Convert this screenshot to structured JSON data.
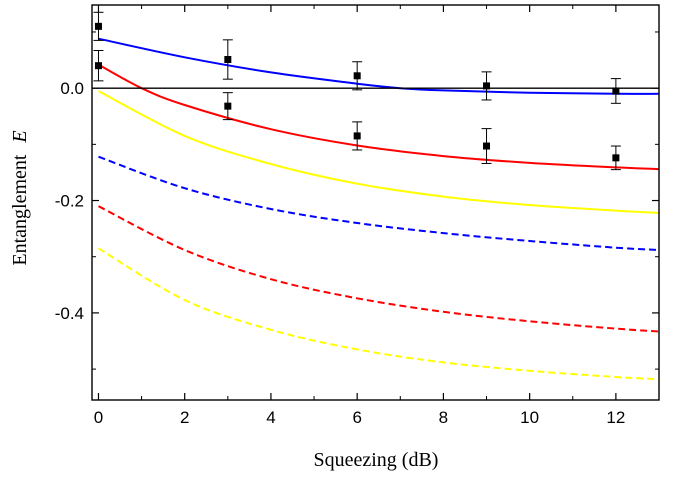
{
  "chart_data": {
    "type": "line",
    "xlabel": "Squeezing  (dB)",
    "ylabel_main": "Entanglement",
    "ylabel_symbol": "E",
    "xlim": [
      -0.15,
      13
    ],
    "ylim": [
      -0.555,
      0.148
    ],
    "xticks": [
      0,
      2,
      4,
      6,
      8,
      10,
      12
    ],
    "yticks": [
      -0.4,
      -0.2,
      0.0
    ],
    "ytick_labels": [
      "-0.4",
      "-0.2",
      "0.0"
    ],
    "grid": false,
    "legend": "none",
    "zero_line": 0.0,
    "series": [
      {
        "color": "#0000ff",
        "dash": "solid",
        "x": [
          0,
          2,
          4,
          6,
          7,
          8,
          10,
          12,
          13
        ],
        "y": [
          0.088,
          0.055,
          0.028,
          0.008,
          0.0,
          -0.004,
          -0.008,
          -0.01,
          -0.01
        ]
      },
      {
        "color": "#ff0000",
        "dash": "solid",
        "x": [
          0,
          1,
          2,
          4,
          6,
          8,
          10,
          12,
          13
        ],
        "y": [
          0.042,
          0.0,
          -0.03,
          -0.073,
          -0.102,
          -0.121,
          -0.133,
          -0.141,
          -0.144
        ]
      },
      {
        "color": "#ffff00",
        "dash": "solid",
        "x": [
          0,
          2,
          4,
          6,
          8,
          10,
          12,
          13
        ],
        "y": [
          -0.005,
          -0.085,
          -0.135,
          -0.17,
          -0.193,
          -0.208,
          -0.218,
          -0.222
        ]
      },
      {
        "color": "#0000ff",
        "dash": "dashed",
        "x": [
          0,
          2,
          4,
          6,
          8,
          10,
          12,
          13
        ],
        "y": [
          -0.122,
          -0.178,
          -0.215,
          -0.24,
          -0.258,
          -0.272,
          -0.284,
          -0.288
        ]
      },
      {
        "color": "#ff0000",
        "dash": "dashed",
        "x": [
          0,
          2,
          4,
          6,
          8,
          10,
          12,
          13
        ],
        "y": [
          -0.21,
          -0.288,
          -0.34,
          -0.374,
          -0.398,
          -0.415,
          -0.428,
          -0.433
        ]
      },
      {
        "color": "#ffff00",
        "dash": "dashed",
        "x": [
          0,
          2,
          4,
          6,
          8,
          10,
          12,
          13
        ],
        "y": [
          -0.285,
          -0.377,
          -0.43,
          -0.465,
          -0.488,
          -0.503,
          -0.514,
          -0.518
        ]
      }
    ],
    "points": [
      {
        "x": 0,
        "y": 0.11,
        "err": 0.025
      },
      {
        "x": 0,
        "y": 0.04,
        "err": 0.027
      },
      {
        "x": 3,
        "y": 0.051,
        "err": 0.035
      },
      {
        "x": 3,
        "y": -0.032,
        "err": 0.024
      },
      {
        "x": 6,
        "y": 0.022,
        "err": 0.025
      },
      {
        "x": 6,
        "y": -0.085,
        "err": 0.025
      },
      {
        "x": 9,
        "y": 0.004,
        "err": 0.025
      },
      {
        "x": 9,
        "y": -0.103,
        "err": 0.031
      },
      {
        "x": 12,
        "y": -0.005,
        "err": 0.022
      },
      {
        "x": 12,
        "y": -0.124,
        "err": 0.021
      }
    ]
  }
}
